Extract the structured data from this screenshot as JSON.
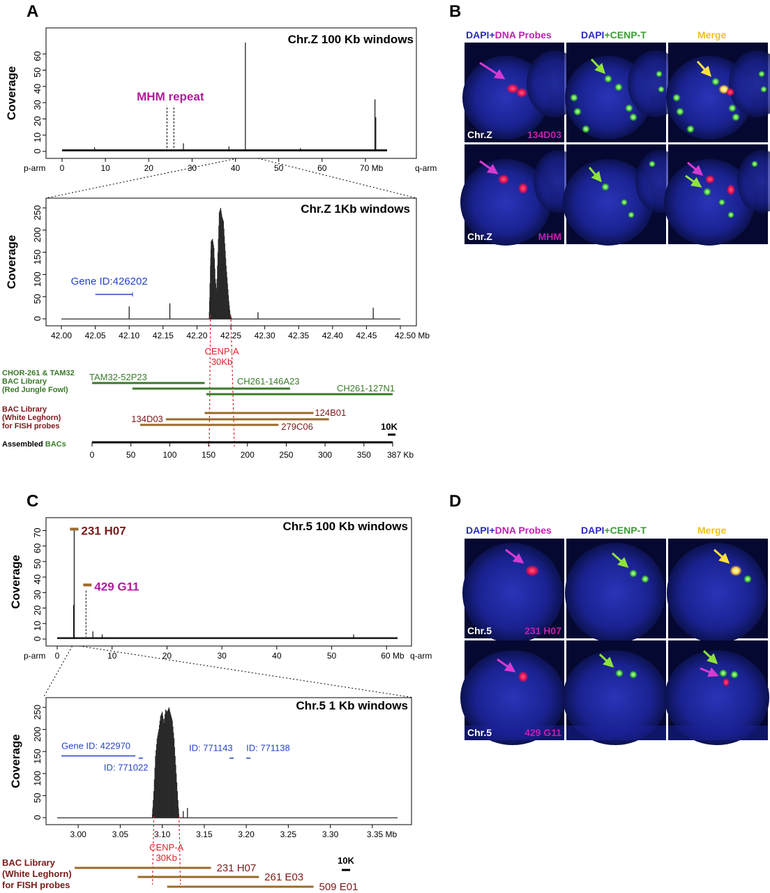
{
  "panels": {
    "A": "A",
    "B": "B",
    "C": "C",
    "D": "D"
  },
  "colors": {
    "magenta": "#b3199e",
    "blue": "#2443c9",
    "green": "#3a7a2a",
    "darkred": "#7a1a1a",
    "brown": "#9a6a2a",
    "red": "#e0202a",
    "yellow": "#f2c21b",
    "cenpt_green": "#43b02a"
  },
  "chart_data": [
    {
      "id": "A1",
      "type": "bar",
      "title": "Chr.Z 100 Kb windows",
      "ylabel": "Coverage",
      "xunit": "Mb",
      "xlim": [
        0,
        75
      ],
      "ylim": [
        0,
        70
      ],
      "xticks": [
        0,
        10,
        20,
        30,
        40,
        50,
        60,
        70
      ],
      "xtick_labels": [
        "0",
        "10",
        "20",
        "30",
        "40",
        "50",
        "60",
        "70 Mb"
      ],
      "yticks": [
        0,
        10,
        20,
        30,
        40,
        50,
        60
      ],
      "arm_left": "p-arm",
      "arm_right": "q-arm",
      "baseline": 1.3,
      "peaks": [
        {
          "x": 42.3,
          "y": 67
        },
        {
          "x": 72.2,
          "y": 32
        },
        {
          "x": 72.4,
          "y": 21
        },
        {
          "x": 28.0,
          "y": 5
        },
        {
          "x": 7.5,
          "y": 2.5
        },
        {
          "x": 38.5,
          "y": 3
        },
        {
          "x": 55.0,
          "y": 2
        }
      ],
      "annotation": {
        "label": "MHM repeat",
        "x_from": 24.2,
        "x_to": 25.8,
        "top": 28
      }
    },
    {
      "id": "A2",
      "type": "bar",
      "title": "Chr.Z 1Kb windows",
      "ylabel": "Coverage",
      "xunit": "Mb",
      "xlim": [
        42.0,
        42.5
      ],
      "ylim": [
        0,
        250
      ],
      "xticks": [
        42.0,
        42.05,
        42.1,
        42.15,
        42.2,
        42.25,
        42.3,
        42.35,
        42.4,
        42.45,
        42.5
      ],
      "xtick_labels": [
        "42.00",
        "42.05",
        "42.10",
        "42.15",
        "42.20",
        "42.25",
        "42.30",
        "42.35",
        "42.40",
        "42.45",
        "42.50 Mb"
      ],
      "yticks": [
        0,
        50,
        100,
        150,
        200,
        250
      ],
      "peaks": [
        {
          "x": 42.1,
          "y": 28
        },
        {
          "x": 42.16,
          "y": 35
        },
        {
          "x": 42.29,
          "y": 15
        },
        {
          "x": 42.46,
          "y": 25
        }
      ],
      "block_profile": [
        [
          42.218,
          0
        ],
        [
          42.22,
          120
        ],
        [
          42.221,
          175
        ],
        [
          42.223,
          180
        ],
        [
          42.225,
          160
        ],
        [
          42.227,
          90
        ],
        [
          42.229,
          60
        ],
        [
          42.231,
          150
        ],
        [
          42.233,
          240
        ],
        [
          42.235,
          250
        ],
        [
          42.237,
          230
        ],
        [
          42.239,
          220
        ],
        [
          42.241,
          170
        ],
        [
          42.243,
          120
        ],
        [
          42.245,
          80
        ],
        [
          42.247,
          40
        ],
        [
          42.249,
          10
        ],
        [
          42.251,
          0
        ]
      ],
      "gene": {
        "label": "Gene ID:426202",
        "x_from": 42.05,
        "x_to": 42.105,
        "y": 55
      },
      "cenp": {
        "label": "CENP-A",
        "size": "30Kb",
        "x_from": 42.22,
        "x_to": 42.25
      }
    },
    {
      "id": "C1",
      "type": "bar",
      "title": "Chr.5 100 Kb windows",
      "ylabel": "Coverage",
      "xunit": "Mb",
      "xlim": [
        0,
        62
      ],
      "ylim": [
        0,
        72
      ],
      "xticks": [
        0,
        10,
        20,
        30,
        40,
        50,
        60
      ],
      "xtick_labels": [
        "0",
        "10",
        "20",
        "30",
        "40",
        "50",
        "60 Mb"
      ],
      "yticks": [
        0,
        10,
        20,
        30,
        40,
        50,
        60,
        70
      ],
      "arm_left": "p-arm",
      "arm_right": "q-arm",
      "baseline": 1.2,
      "peaks": [
        {
          "x": 3.1,
          "y": 70
        },
        {
          "x": 3.0,
          "y": 22
        },
        {
          "x": 6.5,
          "y": 5
        },
        {
          "x": 8.2,
          "y": 3
        },
        {
          "x": 54.0,
          "y": 3
        }
      ],
      "bacs": [
        {
          "label": "231 H07",
          "x": 3.1,
          "y": 70,
          "dashed_to": null
        },
        {
          "label": "429 G11",
          "x": 5.5,
          "y": 34,
          "dashed_to": 5.5
        }
      ]
    },
    {
      "id": "C2",
      "type": "bar",
      "title": "Chr.5 1 Kb windows",
      "ylabel": "Coverage",
      "xunit": "Mb",
      "xlim": [
        2.975,
        3.38
      ],
      "ylim": [
        0,
        250
      ],
      "xticks": [
        3.0,
        3.05,
        3.1,
        3.15,
        3.2,
        3.25,
        3.3,
        3.35
      ],
      "xtick_labels": [
        "3.00",
        "3.05",
        "3.10",
        "3.15",
        "3.20",
        "3.25",
        "3.30",
        "3.35 Mb"
      ],
      "yticks": [
        0,
        50,
        100,
        150,
        200,
        250
      ],
      "peaks": [
        {
          "x": 3.125,
          "y": 15
        },
        {
          "x": 3.13,
          "y": 22
        }
      ],
      "block_profile": [
        [
          3.088,
          0
        ],
        [
          3.09,
          60
        ],
        [
          3.092,
          140
        ],
        [
          3.094,
          180
        ],
        [
          3.096,
          200
        ],
        [
          3.098,
          230
        ],
        [
          3.1,
          240
        ],
        [
          3.102,
          215
        ],
        [
          3.104,
          245
        ],
        [
          3.106,
          240
        ],
        [
          3.108,
          250
        ],
        [
          3.11,
          235
        ],
        [
          3.112,
          220
        ],
        [
          3.114,
          180
        ],
        [
          3.116,
          120
        ],
        [
          3.118,
          60
        ],
        [
          3.12,
          0
        ]
      ],
      "genes": [
        {
          "label": "Gene ID: 422970",
          "x_from": 2.98,
          "x_to": 3.068,
          "y": 140,
          "label_pos": "above"
        },
        {
          "label": "ID: 771022",
          "x_from": 3.072,
          "x_to": 3.077,
          "y": 135,
          "label_pos": "below"
        },
        {
          "label": "ID: 771143",
          "x_from": 3.18,
          "x_to": 3.185,
          "y": 135,
          "label_pos": "above"
        },
        {
          "label": "ID: 771138",
          "x_from": 3.2,
          "x_to": 3.205,
          "y": 135,
          "label_pos": "above"
        }
      ],
      "cenp": {
        "label": "CENP-A",
        "size": "30Kb",
        "x_from": 3.09,
        "x_to": 3.12
      }
    }
  ],
  "bac_map_a": {
    "group1_label": [
      "CHOR-261 & TAM32",
      "BAC Library",
      " (Red Jungle Fowl)"
    ],
    "group2_label": [
      "BAC Library",
      "(White Leghorn)",
      "for FISH probes"
    ],
    "assembled_label_1": "Assembled ",
    "assembled_label_2": "BACs",
    "axis_ticks": [
      0,
      50,
      100,
      150,
      200,
      250,
      300,
      350,
      387
    ],
    "axis_tick_labels": [
      "0",
      "50",
      "100",
      "150",
      "200",
      "250",
      "300",
      "350",
      "387 Kb"
    ],
    "axis_max": 387,
    "scale_label": "10K",
    "green_bacs": [
      {
        "label": "TAM32-52P23",
        "from": 0,
        "to": 145
      },
      {
        "label": "CH261-146A23",
        "from": 52,
        "to": 255
      },
      {
        "label": "CH261-127N1",
        "from": 147,
        "to": 387
      }
    ],
    "brown_bacs": [
      {
        "label": "124B01",
        "from": 145,
        "to": 285
      },
      {
        "label": "134D03",
        "from": 95,
        "to": 305
      },
      {
        "label": "279C06",
        "from": 62,
        "to": 240
      }
    ],
    "cenp_from": 148,
    "cenp_to": 180
  },
  "bac_map_c": {
    "group_label": [
      "BAC Library",
      "(White Leghorn)",
      "for FISH probes"
    ],
    "scale_label": "10K",
    "bacs": [
      {
        "label": "231 H07",
        "from": 3.0,
        "to": 3.158
      },
      {
        "label": "261 E03",
        "from": 3.075,
        "to": 3.215
      },
      {
        "label": "509 E01",
        "from": 3.11,
        "to": 3.28
      }
    ]
  },
  "micro_b": {
    "col1_a": "DAPI",
    "col1_b": "+",
    "col1_c": "DNA Probes",
    "col2_a": "DAPI",
    "col2_b": "+",
    "col2_c": "CENP-T",
    "col3": "Merge",
    "row1_chr": "Chr.Z",
    "row1_probe": "134D03",
    "row2_chr": "Chr.Z",
    "row2_probe": "MHM"
  },
  "micro_d": {
    "col1_a": "DAPI",
    "col1_b": "+",
    "col1_c": "DNA Probes",
    "col2_a": "DAPI",
    "col2_b": "+",
    "col2_c": "CENP-T",
    "col3": "Merge",
    "row1_chr": "Chr.5",
    "row1_probe": "231 H07",
    "row2_chr": "Chr.5",
    "row2_probe": "429 G11"
  }
}
